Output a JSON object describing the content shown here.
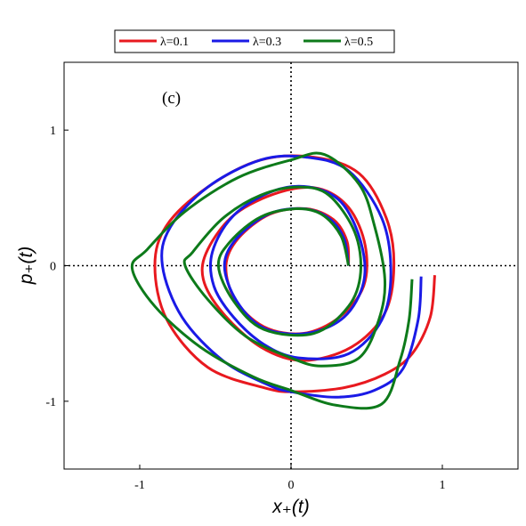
{
  "chart_data": {
    "type": "line",
    "panel_label": "(c)",
    "xlabel": "x₊(t)",
    "ylabel": "p₊(t)",
    "xlim": [
      -1.5,
      1.5
    ],
    "ylim": [
      -1.5,
      1.5
    ],
    "xticks": [
      -1,
      0,
      1
    ],
    "yticks": [
      -1,
      0,
      1
    ],
    "xtick_labels": [
      "-1",
      "0",
      "1"
    ],
    "ytick_labels": [
      "-1",
      "0",
      "1"
    ],
    "zero_lines": "dotted",
    "legend_position": "top-center",
    "series": [
      {
        "name": "λ=0.1",
        "color": "#e8191f",
        "points": [
          [
            0.38,
            0.0
          ],
          [
            0.37,
            0.18
          ],
          [
            0.28,
            0.34
          ],
          [
            0.1,
            0.42
          ],
          [
            -0.14,
            0.38
          ],
          [
            -0.35,
            0.2
          ],
          [
            -0.43,
            0.0
          ],
          [
            -0.37,
            -0.25
          ],
          [
            -0.18,
            -0.45
          ],
          [
            0.08,
            -0.5
          ],
          [
            0.32,
            -0.38
          ],
          [
            0.48,
            -0.15
          ],
          [
            0.49,
            0.15
          ],
          [
            0.38,
            0.43
          ],
          [
            0.18,
            0.57
          ],
          [
            -0.08,
            0.54
          ],
          [
            -0.37,
            0.38
          ],
          [
            -0.55,
            0.12
          ],
          [
            -0.58,
            -0.1
          ],
          [
            -0.45,
            -0.35
          ],
          [
            -0.2,
            -0.6
          ],
          [
            0.08,
            -0.7
          ],
          [
            0.4,
            -0.6
          ],
          [
            0.62,
            -0.35
          ],
          [
            0.68,
            0.0
          ],
          [
            0.63,
            0.35
          ],
          [
            0.45,
            0.68
          ],
          [
            0.15,
            0.8
          ],
          [
            -0.2,
            0.78
          ],
          [
            -0.55,
            0.58
          ],
          [
            -0.82,
            0.3
          ],
          [
            -0.9,
            0.0
          ],
          [
            -0.82,
            -0.4
          ],
          [
            -0.55,
            -0.75
          ],
          [
            -0.18,
            -0.9
          ],
          [
            0.02,
            -0.93
          ],
          [
            0.35,
            -0.9
          ],
          [
            0.62,
            -0.8
          ],
          [
            0.8,
            -0.65
          ],
          [
            0.92,
            -0.38
          ],
          [
            0.95,
            -0.07
          ]
        ]
      },
      {
        "name": "λ=0.3",
        "color": "#1a1ae6",
        "points": [
          [
            0.38,
            0.0
          ],
          [
            0.35,
            0.2
          ],
          [
            0.25,
            0.35
          ],
          [
            0.08,
            0.42
          ],
          [
            -0.15,
            0.38
          ],
          [
            -0.36,
            0.2
          ],
          [
            -0.44,
            0.0
          ],
          [
            -0.36,
            -0.26
          ],
          [
            -0.18,
            -0.46
          ],
          [
            0.1,
            -0.5
          ],
          [
            0.35,
            -0.38
          ],
          [
            0.48,
            -0.12
          ],
          [
            0.46,
            0.18
          ],
          [
            0.33,
            0.47
          ],
          [
            0.12,
            0.58
          ],
          [
            -0.12,
            0.55
          ],
          [
            -0.38,
            0.37
          ],
          [
            -0.52,
            0.1
          ],
          [
            -0.51,
            -0.15
          ],
          [
            -0.38,
            -0.38
          ],
          [
            -0.18,
            -0.58
          ],
          [
            0.05,
            -0.68
          ],
          [
            0.38,
            -0.65
          ],
          [
            0.6,
            -0.4
          ],
          [
            0.66,
            -0.05
          ],
          [
            0.6,
            0.35
          ],
          [
            0.38,
            0.7
          ],
          [
            0.1,
            0.8
          ],
          [
            -0.2,
            0.78
          ],
          [
            -0.55,
            0.58
          ],
          [
            -0.8,
            0.28
          ],
          [
            -0.85,
            0.0
          ],
          [
            -0.72,
            -0.38
          ],
          [
            -0.45,
            -0.7
          ],
          [
            -0.15,
            -0.88
          ],
          [
            0.0,
            -0.93
          ],
          [
            0.3,
            -0.97
          ],
          [
            0.55,
            -0.92
          ],
          [
            0.74,
            -0.76
          ],
          [
            0.84,
            -0.4
          ],
          [
            0.86,
            -0.08
          ]
        ]
      },
      {
        "name": "λ=0.5",
        "color": "#0d7a1a",
        "points": [
          [
            0.38,
            0.0
          ],
          [
            0.33,
            0.22
          ],
          [
            0.2,
            0.38
          ],
          [
            0.03,
            0.42
          ],
          [
            -0.2,
            0.36
          ],
          [
            -0.4,
            0.18
          ],
          [
            -0.48,
            0.0
          ],
          [
            -0.38,
            -0.26
          ],
          [
            -0.18,
            -0.47
          ],
          [
            0.15,
            -0.5
          ],
          [
            0.38,
            -0.3
          ],
          [
            0.46,
            -0.05
          ],
          [
            0.42,
            0.25
          ],
          [
            0.25,
            0.52
          ],
          [
            0.05,
            0.58
          ],
          [
            -0.2,
            0.52
          ],
          [
            -0.45,
            0.35
          ],
          [
            -0.65,
            0.1
          ],
          [
            -0.7,
            0.0
          ],
          [
            -0.55,
            -0.25
          ],
          [
            -0.3,
            -0.52
          ],
          [
            0.0,
            -0.68
          ],
          [
            0.2,
            -0.74
          ],
          [
            0.45,
            -0.68
          ],
          [
            0.58,
            -0.4
          ],
          [
            0.62,
            -0.1
          ],
          [
            0.55,
            0.3
          ],
          [
            0.45,
            0.6
          ],
          [
            0.22,
            0.82
          ],
          [
            0.0,
            0.78
          ],
          [
            -0.35,
            0.65
          ],
          [
            -0.7,
            0.4
          ],
          [
            -0.95,
            0.12
          ],
          [
            -1.05,
            -0.02
          ],
          [
            -0.9,
            -0.3
          ],
          [
            -0.6,
            -0.6
          ],
          [
            -0.25,
            -0.82
          ],
          [
            0.0,
            -0.92
          ],
          [
            0.3,
            -1.03
          ],
          [
            0.6,
            -1.02
          ],
          [
            0.72,
            -0.7
          ],
          [
            0.78,
            -0.4
          ],
          [
            0.8,
            -0.1
          ]
        ]
      }
    ]
  }
}
